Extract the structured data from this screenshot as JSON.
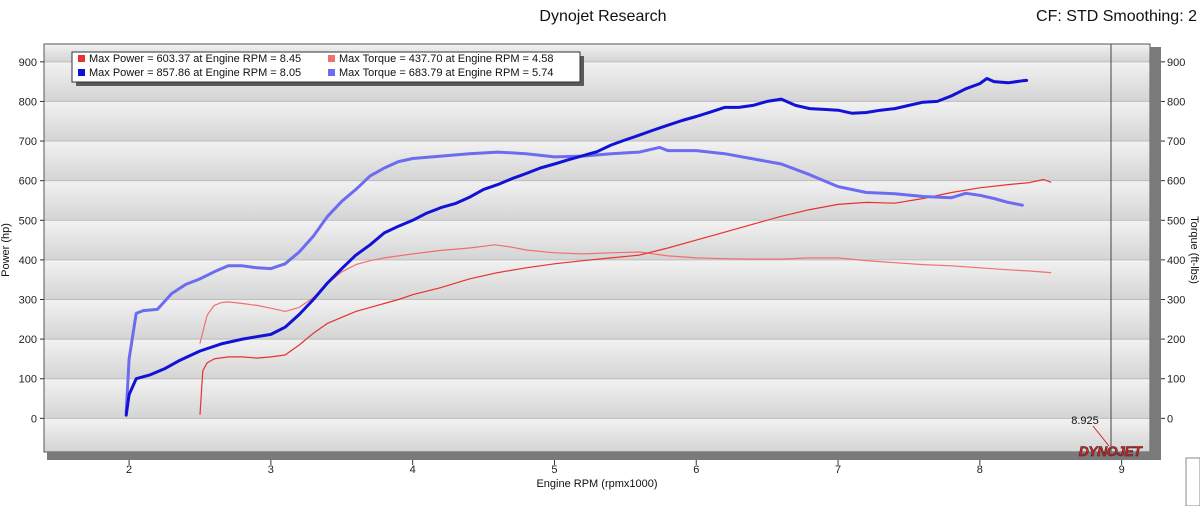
{
  "header": {
    "title": "Dynojet Research",
    "right_info": "CF: STD Smoothing: 2"
  },
  "chart_data": {
    "type": "line",
    "xlabel": "Engine RPM (rpmx1000)",
    "ylabel_left": "Power (hp)",
    "ylabel_right": "Torque (ft-lbs)",
    "xlim": [
      1.4,
      9.2
    ],
    "ylim": [
      -85,
      945
    ],
    "x_ticks": [
      2,
      3,
      4,
      5,
      6,
      7,
      8,
      9
    ],
    "y_ticks": [
      0,
      100,
      200,
      300,
      400,
      500,
      600,
      700,
      800,
      900
    ],
    "cursor": {
      "x": 8.925,
      "label": "8.925"
    },
    "grid": "horizontal-bands",
    "legend_position": "top-left",
    "series": [
      {
        "name": "Max Power = 603.37 at Engine RPM = 8.45",
        "color": "#e63232",
        "weight": "thin",
        "points": [
          [
            2.5,
            10
          ],
          [
            2.52,
            120
          ],
          [
            2.55,
            140
          ],
          [
            2.6,
            150
          ],
          [
            2.7,
            155
          ],
          [
            2.8,
            155
          ],
          [
            2.9,
            152
          ],
          [
            3.0,
            155
          ],
          [
            3.1,
            160
          ],
          [
            3.2,
            185
          ],
          [
            3.3,
            215
          ],
          [
            3.4,
            240
          ],
          [
            3.5,
            255
          ],
          [
            3.6,
            270
          ],
          [
            3.7,
            280
          ],
          [
            3.8,
            290
          ],
          [
            3.9,
            300
          ],
          [
            4.0,
            312
          ],
          [
            4.2,
            330
          ],
          [
            4.4,
            352
          ],
          [
            4.6,
            368
          ],
          [
            4.8,
            380
          ],
          [
            5.0,
            390
          ],
          [
            5.2,
            398
          ],
          [
            5.4,
            405
          ],
          [
            5.6,
            412
          ],
          [
            5.8,
            430
          ],
          [
            6.0,
            450
          ],
          [
            6.2,
            470
          ],
          [
            6.4,
            490
          ],
          [
            6.6,
            510
          ],
          [
            6.8,
            527
          ],
          [
            7.0,
            540
          ],
          [
            7.2,
            545
          ],
          [
            7.4,
            543
          ],
          [
            7.6,
            555
          ],
          [
            7.8,
            570
          ],
          [
            8.0,
            582
          ],
          [
            8.2,
            590
          ],
          [
            8.35,
            595
          ],
          [
            8.45,
            603
          ],
          [
            8.5,
            596
          ]
        ]
      },
      {
        "name": "Max Power = 857.86 at Engine RPM = 8.05",
        "color": "#1212d6",
        "weight": "thick",
        "points": [
          [
            1.98,
            8
          ],
          [
            2.0,
            60
          ],
          [
            2.05,
            100
          ],
          [
            2.15,
            110
          ],
          [
            2.25,
            125
          ],
          [
            2.35,
            145
          ],
          [
            2.5,
            170
          ],
          [
            2.65,
            188
          ],
          [
            2.8,
            200
          ],
          [
            2.9,
            206
          ],
          [
            3.0,
            212
          ],
          [
            3.1,
            230
          ],
          [
            3.2,
            262
          ],
          [
            3.3,
            300
          ],
          [
            3.4,
            342
          ],
          [
            3.5,
            378
          ],
          [
            3.6,
            412
          ],
          [
            3.7,
            438
          ],
          [
            3.8,
            468
          ],
          [
            3.9,
            485
          ],
          [
            4.0,
            500
          ],
          [
            4.1,
            518
          ],
          [
            4.2,
            532
          ],
          [
            4.3,
            542
          ],
          [
            4.4,
            558
          ],
          [
            4.5,
            578
          ],
          [
            4.6,
            590
          ],
          [
            4.7,
            605
          ],
          [
            4.8,
            618
          ],
          [
            4.9,
            632
          ],
          [
            5.0,
            642
          ],
          [
            5.1,
            653
          ],
          [
            5.2,
            663
          ],
          [
            5.3,
            673
          ],
          [
            5.4,
            690
          ],
          [
            5.5,
            703
          ],
          [
            5.6,
            715
          ],
          [
            5.7,
            728
          ],
          [
            5.8,
            740
          ],
          [
            5.9,
            752
          ],
          [
            6.0,
            762
          ],
          [
            6.1,
            773
          ],
          [
            6.2,
            785
          ],
          [
            6.3,
            785
          ],
          [
            6.4,
            790
          ],
          [
            6.5,
            800
          ],
          [
            6.6,
            806
          ],
          [
            6.7,
            790
          ],
          [
            6.8,
            782
          ],
          [
            6.9,
            780
          ],
          [
            7.0,
            778
          ],
          [
            7.1,
            770
          ],
          [
            7.2,
            772
          ],
          [
            7.3,
            778
          ],
          [
            7.4,
            782
          ],
          [
            7.5,
            790
          ],
          [
            7.6,
            798
          ],
          [
            7.7,
            800
          ],
          [
            7.8,
            814
          ],
          [
            7.9,
            832
          ],
          [
            8.0,
            845
          ],
          [
            8.05,
            858
          ],
          [
            8.1,
            850
          ],
          [
            8.2,
            847
          ],
          [
            8.3,
            852
          ],
          [
            8.33,
            853
          ]
        ]
      },
      {
        "name": "Max Torque = 437.70 at Engine RPM = 4.58",
        "color": "#f07070",
        "weight": "thin",
        "points": [
          [
            2.5,
            190
          ],
          [
            2.55,
            260
          ],
          [
            2.6,
            285
          ],
          [
            2.65,
            292
          ],
          [
            2.7,
            294
          ],
          [
            2.8,
            290
          ],
          [
            2.9,
            285
          ],
          [
            3.0,
            278
          ],
          [
            3.1,
            270
          ],
          [
            3.2,
            280
          ],
          [
            3.3,
            305
          ],
          [
            3.4,
            340
          ],
          [
            3.5,
            370
          ],
          [
            3.6,
            388
          ],
          [
            3.7,
            398
          ],
          [
            3.8,
            405
          ],
          [
            3.9,
            410
          ],
          [
            4.0,
            415
          ],
          [
            4.2,
            424
          ],
          [
            4.4,
            430
          ],
          [
            4.58,
            438
          ],
          [
            4.7,
            432
          ],
          [
            4.8,
            425
          ],
          [
            5.0,
            418
          ],
          [
            5.2,
            415
          ],
          [
            5.4,
            418
          ],
          [
            5.6,
            420
          ],
          [
            5.8,
            410
          ],
          [
            6.0,
            405
          ],
          [
            6.2,
            403
          ],
          [
            6.4,
            402
          ],
          [
            6.6,
            402
          ],
          [
            6.8,
            405
          ],
          [
            7.0,
            405
          ],
          [
            7.2,
            398
          ],
          [
            7.4,
            393
          ],
          [
            7.6,
            388
          ],
          [
            7.8,
            385
          ],
          [
            8.0,
            380
          ],
          [
            8.2,
            375
          ],
          [
            8.35,
            372
          ],
          [
            8.5,
            368
          ]
        ]
      },
      {
        "name": "Max Torque = 683.79 at Engine RPM = 5.74",
        "color": "#6b6cf0",
        "weight": "thick",
        "points": [
          [
            1.98,
            15
          ],
          [
            2.0,
            150
          ],
          [
            2.05,
            265
          ],
          [
            2.1,
            272
          ],
          [
            2.2,
            275
          ],
          [
            2.3,
            315
          ],
          [
            2.4,
            338
          ],
          [
            2.5,
            352
          ],
          [
            2.6,
            370
          ],
          [
            2.7,
            385
          ],
          [
            2.8,
            385
          ],
          [
            2.9,
            380
          ],
          [
            3.0,
            378
          ],
          [
            3.1,
            390
          ],
          [
            3.2,
            420
          ],
          [
            3.3,
            460
          ],
          [
            3.4,
            510
          ],
          [
            3.5,
            548
          ],
          [
            3.6,
            578
          ],
          [
            3.7,
            612
          ],
          [
            3.8,
            632
          ],
          [
            3.9,
            648
          ],
          [
            4.0,
            656
          ],
          [
            4.2,
            662
          ],
          [
            4.4,
            668
          ],
          [
            4.6,
            672
          ],
          [
            4.8,
            668
          ],
          [
            5.0,
            660
          ],
          [
            5.2,
            662
          ],
          [
            5.4,
            668
          ],
          [
            5.6,
            672
          ],
          [
            5.74,
            684
          ],
          [
            5.8,
            676
          ],
          [
            6.0,
            676
          ],
          [
            6.2,
            668
          ],
          [
            6.4,
            655
          ],
          [
            6.6,
            642
          ],
          [
            6.8,
            615
          ],
          [
            7.0,
            585
          ],
          [
            7.2,
            570
          ],
          [
            7.4,
            567
          ],
          [
            7.6,
            560
          ],
          [
            7.8,
            557
          ],
          [
            7.9,
            568
          ],
          [
            8.0,
            563
          ],
          [
            8.1,
            555
          ],
          [
            8.2,
            545
          ],
          [
            8.3,
            538
          ]
        ]
      }
    ]
  },
  "watermark": "DYNOJET"
}
